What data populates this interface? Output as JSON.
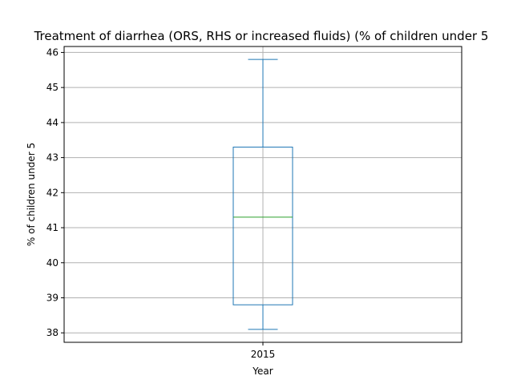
{
  "chart_data": {
    "type": "box",
    "title": "Treatment of diarrhea (ORS, RHS or increased fluids) (% of children under 5",
    "xlabel": "Year",
    "ylabel": "% of children under 5",
    "categories": [
      "2015"
    ],
    "ylim": [
      37.73,
      46.17
    ],
    "yticks": [
      38,
      39,
      40,
      41,
      42,
      43,
      44,
      45,
      46
    ],
    "grid": true,
    "boxes": [
      {
        "category": "2015",
        "whisker_low": 38.1,
        "q1": 38.8,
        "median": 41.3,
        "q3": 43.3,
        "whisker_high": 45.8
      }
    ],
    "colors": {
      "box": "#1f77b4",
      "median": "#2ca02c",
      "grid": "#b0b0b0"
    }
  }
}
